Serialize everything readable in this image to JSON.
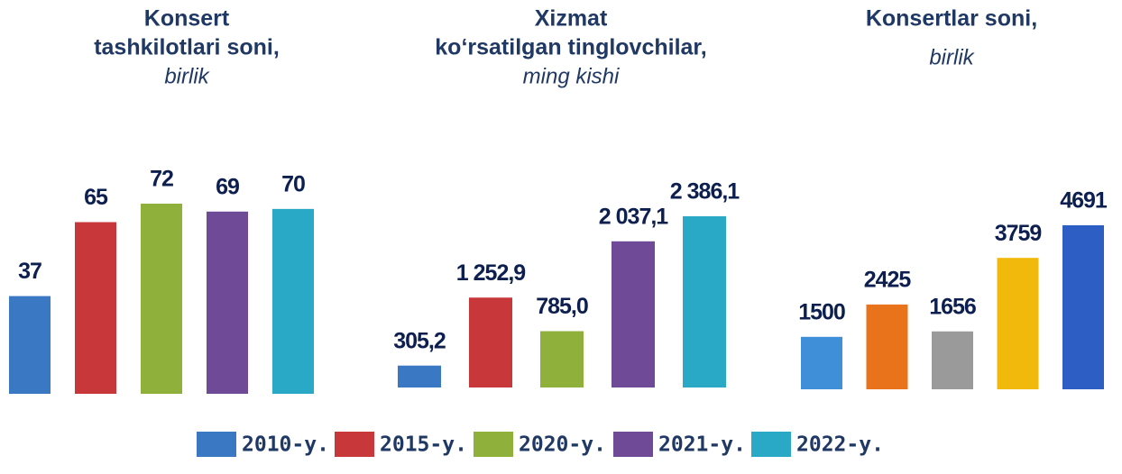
{
  "chart_data": [
    {
      "type": "bar",
      "title": [
        "Konsert",
        "tashkilotlari soni,"
      ],
      "subtitle": "birlik",
      "values": [
        37,
        65,
        72,
        69,
        70
      ],
      "colors": [
        "#3b78c4",
        "#c8373a",
        "#8fb13c",
        "#6f4a97",
        "#2aa9c6"
      ]
    },
    {
      "type": "bar",
      "title": [
        "Xizmat",
        "ko‘rsatilgan tinglovchilar,"
      ],
      "subtitle": "ming kishi",
      "values": [
        305.2,
        1252.9,
        785.0,
        2037.1,
        2386.1
      ],
      "value_labels": [
        "305,2",
        "1 252,9",
        "785,0",
        "2 037,1",
        "2 386,1"
      ],
      "colors": [
        "#3b78c4",
        "#c8373a",
        "#8fb13c",
        "#6f4a97",
        "#2aa9c6"
      ]
    },
    {
      "type": "bar",
      "title": [
        "Konsertlar soni,"
      ],
      "subtitle": "birlik",
      "values": [
        1500,
        2425,
        1656,
        3759,
        4691
      ],
      "colors": [
        "#3f8fd8",
        "#e8731a",
        "#9a9a9a",
        "#f2b90d",
        "#2d5ec4"
      ]
    }
  ],
  "legend": [
    {
      "name": "2010-y.",
      "color": "#3b78c4"
    },
    {
      "name": "2015-y.",
      "color": "#c8373a"
    },
    {
      "name": "2020-y.",
      "color": "#8fb13c"
    },
    {
      "name": "2021-y.",
      "color": "#6f4a97"
    },
    {
      "name": "2022-y.",
      "color": "#2aa9c6"
    }
  ]
}
